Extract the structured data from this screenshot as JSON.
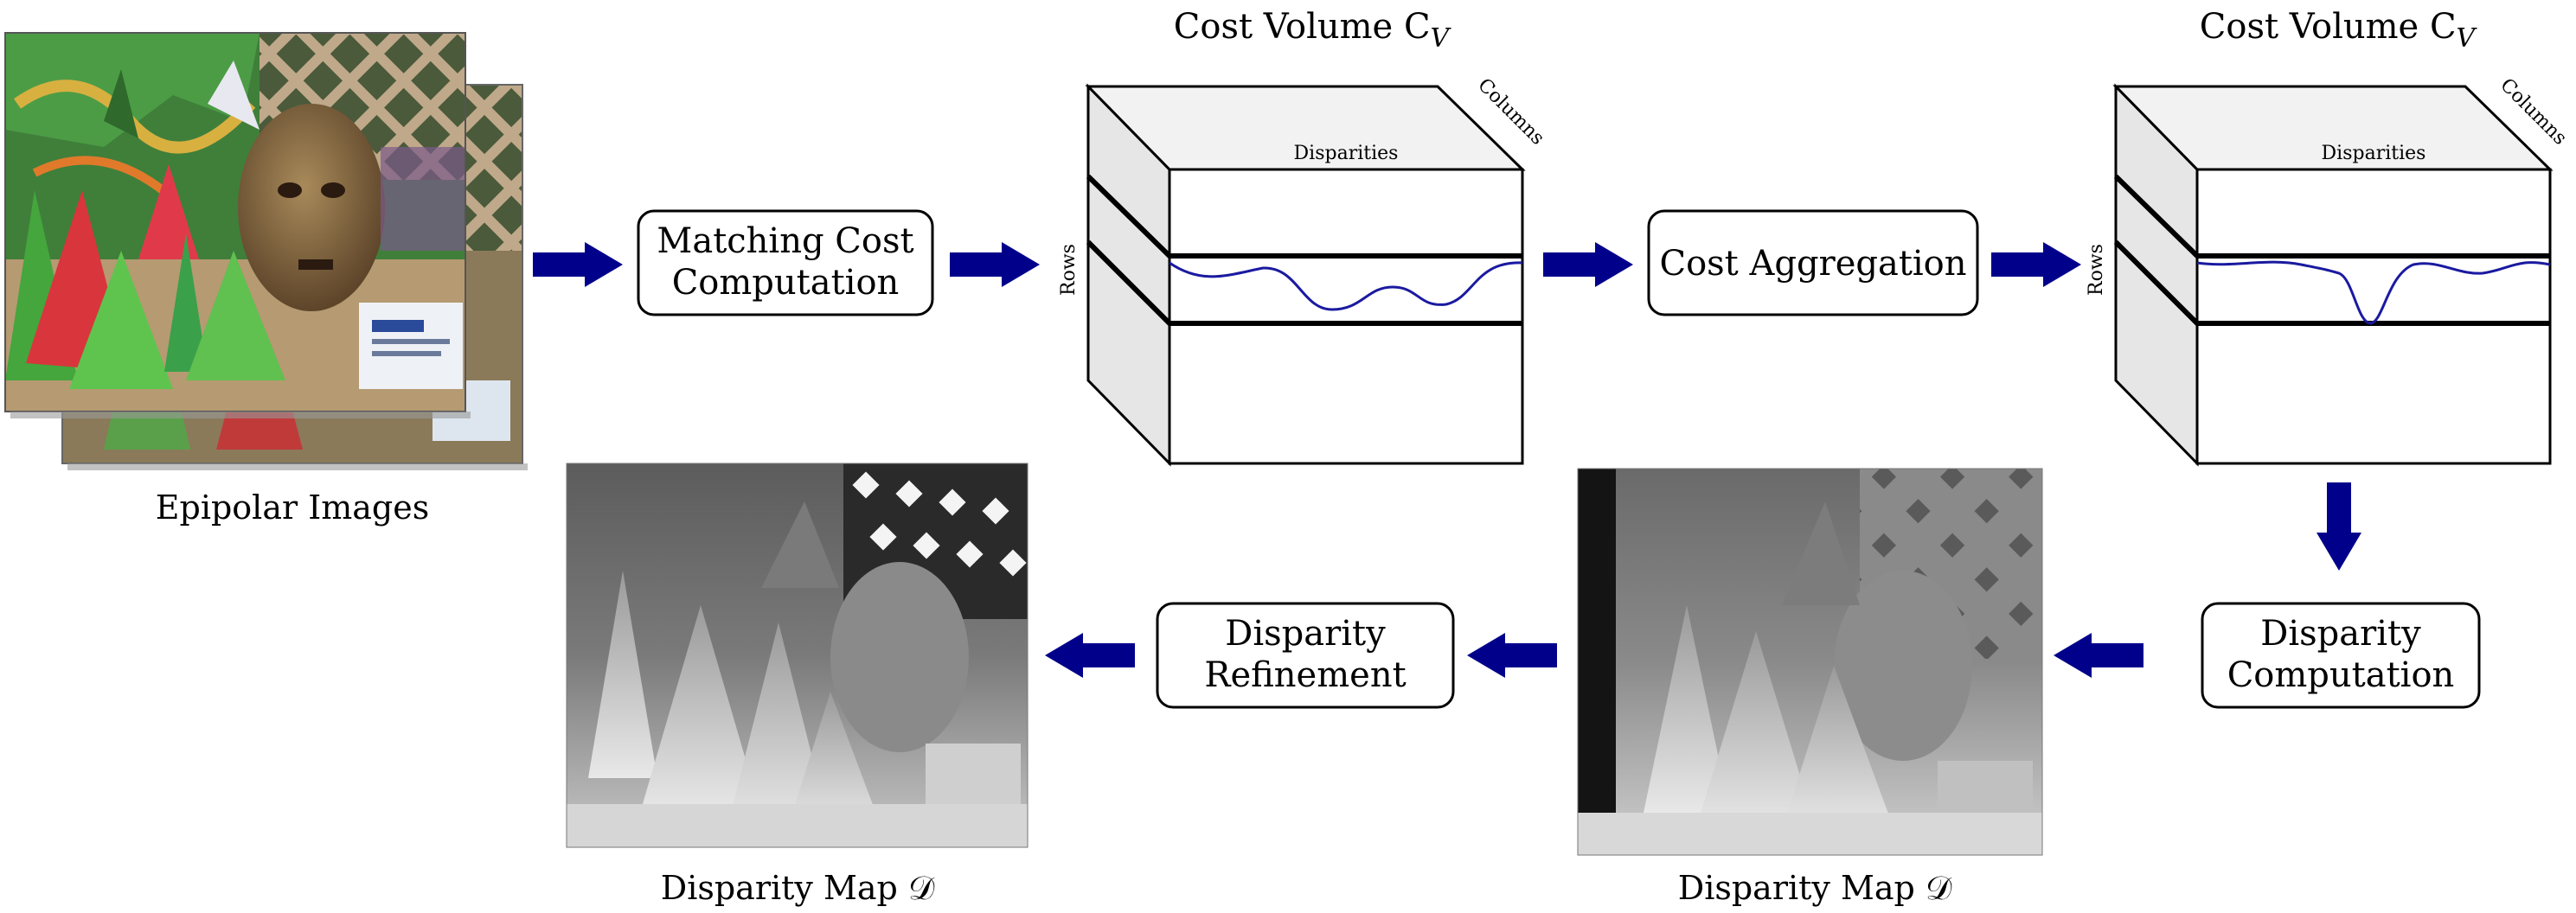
{
  "stages": {
    "matching": [
      "Matching Cost",
      "Computation"
    ],
    "aggregation": [
      "Cost Aggregation"
    ],
    "disparity_computation": [
      "Disparity",
      "Computation"
    ],
    "refinement": [
      "Disparity",
      "Refinement"
    ]
  },
  "labels": {
    "epipolar_images": "Epipolar Images",
    "cost_volume_1": "Cost Volume C",
    "cost_volume_2": "Cost Volume C",
    "cost_volume_sub": "V",
    "disparity_map_1": "Disparity Map 𝒟",
    "disparity_map_2": "Disparity Map 𝒟"
  },
  "cube_axes": {
    "disparities": "Disparities",
    "columns": "Columns",
    "rows": "Rows"
  },
  "colors": {
    "arrow": "#00008b",
    "curve": "#1a1aa0",
    "cube_side": "#e6e6e6",
    "cube_top": "#f2f2f2"
  }
}
